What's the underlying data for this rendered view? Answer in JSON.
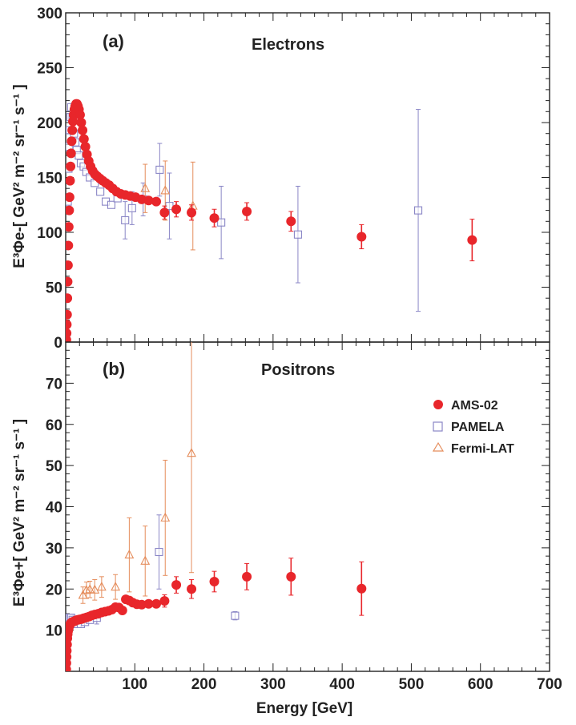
{
  "chart_data": {
    "type": "scatter",
    "xlabel": "Energy  [GeV]",
    "xlim": [
      0,
      700
    ],
    "x_ticks": [
      "100",
      "200",
      "300",
      "400",
      "500",
      "600",
      "700"
    ],
    "colors": {
      "AMS-02": "#e8262b",
      "PAMELA": "#8a86c6",
      "Fermi-LAT": "#e58d5c"
    },
    "legend": {
      "placement": "right",
      "entries": [
        "AMS-02",
        "PAMELA",
        "Fermi-LAT"
      ]
    },
    "panels": [
      {
        "label": "(a)",
        "title": "Electrons",
        "ylabel": "E³Φe-[ GeV² m⁻² sr⁻¹ s⁻¹ ]",
        "ylim": [
          0,
          300
        ],
        "y_ticks": [
          "0",
          "50",
          "100",
          "150",
          "200",
          "250",
          "300"
        ],
        "series": [
          {
            "name": "AMS-02",
            "marker": "filled-circle",
            "points": [
              [
                1,
                2
              ],
              [
                1.3,
                8
              ],
              [
                1.6,
                16
              ],
              [
                2,
                25
              ],
              [
                2.4,
                40
              ],
              [
                2.8,
                55
              ],
              [
                3.3,
                70
              ],
              [
                3.8,
                88
              ],
              [
                4.4,
                105
              ],
              [
                5,
                120
              ],
              [
                5.6,
                132
              ],
              [
                6.3,
                147
              ],
              [
                7,
                160
              ],
              [
                7.8,
                172
              ],
              [
                8.6,
                183
              ],
              [
                9.5,
                193
              ],
              [
                10.5,
                201
              ],
              [
                11.5,
                207
              ],
              [
                12.6,
                212
              ],
              [
                13.8,
                215
              ],
              [
                15,
                217
              ],
              [
                16.3,
                217
              ],
              [
                17.7,
                215
              ],
              [
                19.2,
                212
              ],
              [
                20.8,
                207
              ],
              [
                22.5,
                200
              ],
              [
                24.4,
                193
              ],
              [
                26.4,
                185
              ],
              [
                28.5,
                178
              ],
              [
                30.8,
                171
              ],
              [
                33.3,
                165
              ],
              [
                36,
                160
              ],
              [
                39,
                156
              ],
              [
                42.2,
                153
              ],
              [
                45.7,
                151
              ],
              [
                49.5,
                149
              ],
              [
                53.6,
                147
              ],
              [
                58,
                145
              ],
              [
                62.8,
                143
              ],
              [
                68,
                140
              ],
              [
                73.6,
                137
              ],
              [
                79.7,
                135
              ],
              [
                86.3,
                134
              ],
              [
                93.4,
                133
              ],
              [
                101,
                132
              ],
              [
                110,
                130
              ],
              [
                120,
                129
              ],
              [
                131,
                128
              ],
              [
                143,
                118
              ],
              [
                160,
                121
              ],
              [
                182,
                118
              ],
              [
                215,
                113
              ],
              [
                262,
                119
              ],
              [
                326,
                110
              ],
              [
                428,
                96
              ],
              [
                588,
                93
              ]
            ],
            "err": [
              [
                143,
                6
              ],
              [
                160,
                7
              ],
              [
                182,
                7
              ],
              [
                215,
                8
              ],
              [
                262,
                8
              ],
              [
                326,
                9
              ],
              [
                428,
                11
              ],
              [
                588,
                19
              ]
            ]
          },
          {
            "name": "PAMELA",
            "marker": "open-square",
            "points": [
              [
                2,
                70
              ],
              [
                3,
                128
              ],
              [
                4,
                158
              ],
              [
                5,
                178
              ],
              [
                6,
                193
              ],
              [
                7,
                205
              ],
              [
                8,
                214
              ],
              [
                10,
                205
              ],
              [
                12,
                190
              ],
              [
                14,
                182
              ],
              [
                16,
                175
              ],
              [
                19,
                170
              ],
              [
                22,
                163
              ],
              [
                26,
                160
              ],
              [
                30,
                155
              ],
              [
                35,
                150
              ],
              [
                42,
                145
              ],
              [
                50,
                137
              ],
              [
                58,
                128
              ],
              [
                66,
                125
              ],
              [
                75,
                131
              ],
              [
                86,
                111
              ],
              [
                96,
                122
              ],
              [
                112,
                130
              ],
              [
                136,
                157
              ],
              [
                150,
                124
              ],
              [
                225,
                109
              ],
              [
                336,
                98
              ],
              [
                510,
                120
              ]
            ],
            "err": [
              [
                86,
                17
              ],
              [
                96,
                15
              ],
              [
                112,
                15
              ],
              [
                136,
                24
              ],
              [
                150,
                30
              ],
              [
                225,
                33
              ],
              [
                336,
                44
              ],
              [
                510,
                92
              ]
            ]
          },
          {
            "name": "Fermi-LAT",
            "marker": "open-triangle",
            "points": [
              [
                115,
                140
              ],
              [
                144,
                138
              ],
              [
                184,
                124
              ]
            ],
            "err": [
              [
                115,
                22
              ],
              [
                144,
                27
              ],
              [
                184,
                40
              ]
            ]
          }
        ]
      },
      {
        "label": "(b)",
        "title": "Positrons",
        "ylabel": "E³Φe+[ GeV² m⁻² sr⁻¹ s⁻¹ ]",
        "ylim": [
          0,
          80
        ],
        "y_ticks": [
          "10",
          "20",
          "30",
          "40",
          "50",
          "60",
          "70"
        ],
        "series": [
          {
            "name": "AMS-02",
            "marker": "filled-circle",
            "points": [
              [
                0.8,
                0.5
              ],
              [
                1,
                2
              ],
              [
                1.3,
                3.5
              ],
              [
                1.6,
                5
              ],
              [
                2,
                6.5
              ],
              [
                2.4,
                8
              ],
              [
                2.9,
                9
              ],
              [
                3.5,
                9.8
              ],
              [
                4.2,
                10.4
              ],
              [
                5,
                10.9
              ],
              [
                6,
                11.3
              ],
              [
                7,
                11.6
              ],
              [
                8,
                11.8
              ],
              [
                9.5,
                12
              ],
              [
                11,
                12.1
              ],
              [
                13,
                12.2
              ],
              [
                15,
                12.4
              ],
              [
                17.5,
                12.5
              ],
              [
                20,
                12.6
              ],
              [
                23,
                12.7
              ],
              [
                26,
                12.9
              ],
              [
                30,
                13.1
              ],
              [
                34,
                13.3
              ],
              [
                38,
                13.6
              ],
              [
                42,
                13.8
              ],
              [
                47,
                14
              ],
              [
                52,
                14.3
              ],
              [
                57,
                14.5
              ],
              [
                62,
                14.7
              ],
              [
                67,
                15
              ],
              [
                72,
                15.6
              ],
              [
                77,
                15.5
              ],
              [
                82,
                14.8
              ],
              [
                87,
                17.5
              ],
              [
                92,
                17.2
              ],
              [
                97,
                16.7
              ],
              [
                103,
                16.3
              ],
              [
                110,
                16.2
              ],
              [
                120,
                16.4
              ],
              [
                131,
                16.4
              ],
              [
                143,
                17.1
              ],
              [
                160,
                21
              ],
              [
                182,
                20
              ],
              [
                215,
                21.8
              ],
              [
                262,
                23
              ],
              [
                326,
                23
              ],
              [
                428,
                20.1
              ]
            ],
            "err": [
              [
                143,
                1.5
              ],
              [
                160,
                2
              ],
              [
                182,
                2.3
              ],
              [
                215,
                2.5
              ],
              [
                262,
                3.2
              ],
              [
                326,
                4.5
              ],
              [
                428,
                6.5
              ]
            ]
          },
          {
            "name": "PAMELA",
            "marker": "open-square",
            "points": [
              [
                1.5,
                9
              ],
              [
                2,
                10
              ],
              [
                3,
                11.5
              ],
              [
                4,
                12.5
              ],
              [
                5,
                13
              ],
              [
                6,
                13
              ],
              [
                8,
                13
              ],
              [
                10,
                12.5
              ],
              [
                13,
                12
              ],
              [
                17,
                11.5
              ],
              [
                22,
                11.5
              ],
              [
                28,
                12
              ],
              [
                35,
                12.5
              ],
              [
                45,
                13
              ],
              [
                135,
                29
              ],
              [
                245,
                13.5
              ]
            ],
            "err": [
              [
                45,
                1.5
              ],
              [
                135,
                9
              ],
              [
                245,
                1
              ]
            ]
          },
          {
            "name": "Fermi-LAT",
            "marker": "open-triangle",
            "points": [
              [
                25,
                18.5
              ],
              [
                30,
                19.7
              ],
              [
                35,
                19.9
              ],
              [
                42,
                19.8
              ],
              [
                52,
                20.5
              ],
              [
                72,
                20.5
              ],
              [
                92,
                28.3
              ],
              [
                115,
                26.8
              ],
              [
                144,
                37.3
              ],
              [
                182,
                53
              ]
            ],
            "err": [
              [
                25,
                2
              ],
              [
                30,
                2
              ],
              [
                35,
                2
              ],
              [
                42,
                2.5
              ],
              [
                52,
                2.5
              ],
              [
                72,
                3
              ],
              [
                92,
                9
              ],
              [
                115,
                8.5
              ],
              [
                144,
                14
              ],
              [
                182,
                29
              ]
            ]
          }
        ]
      }
    ]
  }
}
